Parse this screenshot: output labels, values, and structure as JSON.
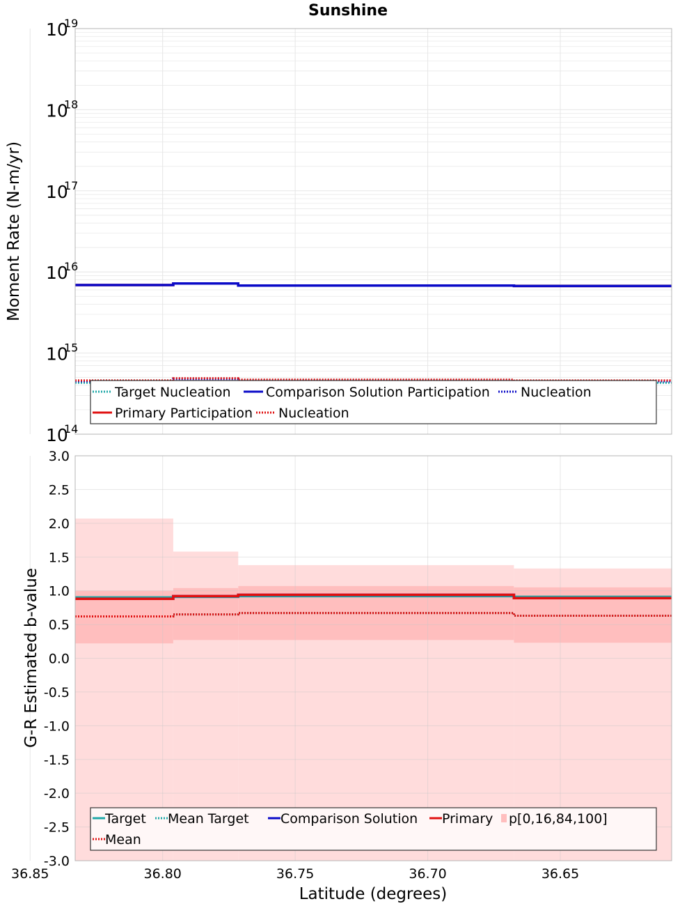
{
  "title": "Sunshine",
  "colors": {
    "target": "#1fa8a8",
    "comparison": "#0a0ac8",
    "primary": "#e01010",
    "band_outer": "#ffdcdc",
    "band_inner": "#ffbebe",
    "grid": "#e6e6e6",
    "frame": "#b4b4b4"
  },
  "chart_data": [
    {
      "id": "top",
      "type": "line",
      "ylabel": "Moment Rate (N-m/yr)",
      "xlabel": "",
      "y_scale": "log",
      "ylim": [
        100000000000000.0,
        1e+19
      ],
      "x_reversed": true,
      "xlim": [
        36.833,
        36.608
      ],
      "y_ticks": [
        {
          "value": 1e+19,
          "base": "10",
          "exp": "19"
        },
        {
          "value": 1e+18,
          "base": "10",
          "exp": "18"
        },
        {
          "value": 1e+17,
          "base": "10",
          "exp": "17"
        },
        {
          "value": 1e+16,
          "base": "10",
          "exp": "16"
        },
        {
          "value": 1000000000000000.0,
          "base": "10",
          "exp": "15"
        },
        {
          "value": 100000000000000.0,
          "base": "10",
          "exp": "14"
        }
      ],
      "x_edges": [
        36.833,
        36.796,
        36.7715,
        36.6675,
        36.608
      ],
      "series": [
        {
          "name": "Target Nucleation",
          "color_key": "target",
          "style": "dotted",
          "values": [
            430000000000000.0,
            430000000000000.0,
            430000000000000.0,
            430000000000000.0
          ]
        },
        {
          "name": "Comparison Solution Participation",
          "color_key": "comparison",
          "style": "solid",
          "values": [
            6900000000000000.0,
            7200000000000000.0,
            6800000000000000.0,
            6700000000000000.0
          ]
        },
        {
          "name": "Nucleation",
          "color_key": "comparison",
          "style": "dotted",
          "values": [
            450000000000000.0,
            480000000000000.0,
            460000000000000.0,
            450000000000000.0
          ]
        },
        {
          "name": "Primary Participation",
          "color_key": "primary",
          "style": "solid",
          "values": [
            6900000000000000.0,
            7200000000000000.0,
            6800000000000000.0,
            6700000000000000.0
          ]
        },
        {
          "name": "Nucleation",
          "color_key": "primary",
          "style": "dotted",
          "values": [
            460000000000000.0,
            490000000000000.0,
            470000000000000.0,
            460000000000000.0
          ]
        }
      ],
      "legend_rows": [
        [
          "Target Nucleation",
          "Comparison Solution Participation",
          "Nucleation"
        ],
        [
          "Primary Participation",
          "Nucleation"
        ]
      ]
    },
    {
      "id": "bottom",
      "type": "line",
      "ylabel": "G-R Estimated b-value",
      "xlabel": "Latitude (degrees)",
      "y_scale": "linear",
      "ylim": [
        -3.0,
        3.0
      ],
      "x_reversed": true,
      "xlim": [
        36.833,
        36.608
      ],
      "y_ticks": [
        "3.0",
        "2.5",
        "2.0",
        "1.5",
        "1.0",
        "0.5",
        "0.0",
        "-0.5",
        "-1.0",
        "-1.5",
        "-2.0",
        "-2.5",
        "-3.0"
      ],
      "x_ticks": [
        "36.85",
        "36.80",
        "36.75",
        "36.70",
        "36.65"
      ],
      "x_edges": [
        36.833,
        36.796,
        36.7715,
        36.6675,
        36.608
      ],
      "band": {
        "name": "p[0,16,84,100]",
        "p0": [
          -3.0,
          -3.0,
          -3.0,
          -3.0
        ],
        "p16": [
          0.22,
          0.27,
          0.27,
          0.23
        ],
        "p84": [
          1.0,
          1.04,
          1.07,
          1.05
        ],
        "p100": [
          2.07,
          1.58,
          1.38,
          1.33
        ]
      },
      "series": [
        {
          "name": "Target",
          "color_key": "target",
          "style": "solid",
          "values": [
            0.9,
            0.91,
            0.92,
            0.91
          ]
        },
        {
          "name": "Mean Target",
          "color_key": "target",
          "style": "dotted",
          "values": [
            0.62,
            0.65,
            0.67,
            0.63
          ]
        },
        {
          "name": "Comparison Solution",
          "color_key": "comparison",
          "style": "solid",
          "values": [
            0.88,
            0.92,
            0.94,
            0.89
          ]
        },
        {
          "name": "Primary",
          "color_key": "primary",
          "style": "solid",
          "values": [
            0.88,
            0.92,
            0.94,
            0.89
          ]
        },
        {
          "name": "Mean",
          "color_key": "primary",
          "style": "dotted",
          "values": [
            0.62,
            0.65,
            0.67,
            0.63
          ]
        }
      ],
      "legend_rows": [
        [
          "Target",
          "Mean Target",
          "Comparison Solution",
          "Primary",
          "p[0,16,84,100]"
        ],
        [
          "Mean"
        ]
      ]
    }
  ]
}
